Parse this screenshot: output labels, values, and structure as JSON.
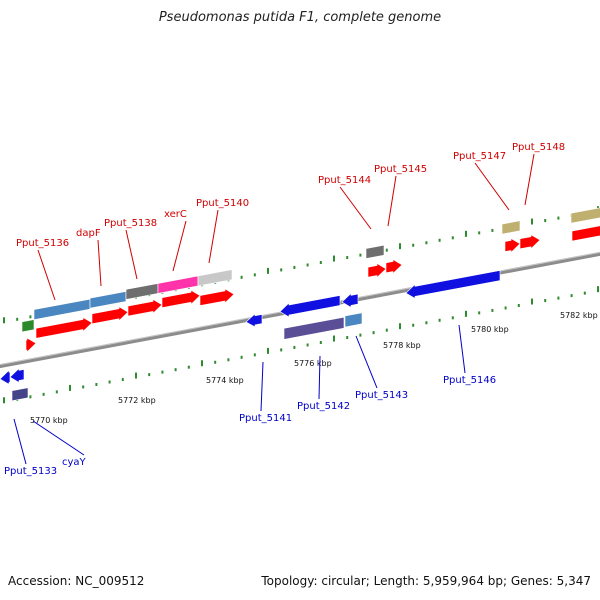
{
  "title": "Pseudomonas putida F1, complete genome",
  "accession": "Accession: NC_009512",
  "stats": "Topology: circular; Length: 5,959,964 bp; Genes: 5,347",
  "colors": {
    "plus_label": "#d00000",
    "minus_label": "#0000c8",
    "backbone": "#8c8c8c",
    "tick": "#2e8b2e"
  },
  "ruler": [
    {
      "label": "5770 kbp"
    },
    {
      "label": "5772 kbp"
    },
    {
      "label": "5774 kbp"
    },
    {
      "label": "5776 kbp"
    },
    {
      "label": "5778 kbp"
    },
    {
      "label": "5780 kbp"
    },
    {
      "label": "5782 kbp"
    }
  ],
  "genes_plus": [
    {
      "label": "Pput_5136"
    },
    {
      "label": "dapF"
    },
    {
      "label": "Pput_5138"
    },
    {
      "label": "xerC"
    },
    {
      "label": "Pput_5140"
    },
    {
      "label": "Pput_5144"
    },
    {
      "label": "Pput_5145"
    },
    {
      "label": "Pput_5147"
    },
    {
      "label": "Pput_5148"
    }
  ],
  "genes_minus": [
    {
      "label": "Pput_5133"
    },
    {
      "label": "cyaY"
    },
    {
      "label": "Pput_5141"
    },
    {
      "label": "Pput_5142"
    },
    {
      "label": "Pput_5143"
    },
    {
      "label": "Pput_5146"
    }
  ]
}
